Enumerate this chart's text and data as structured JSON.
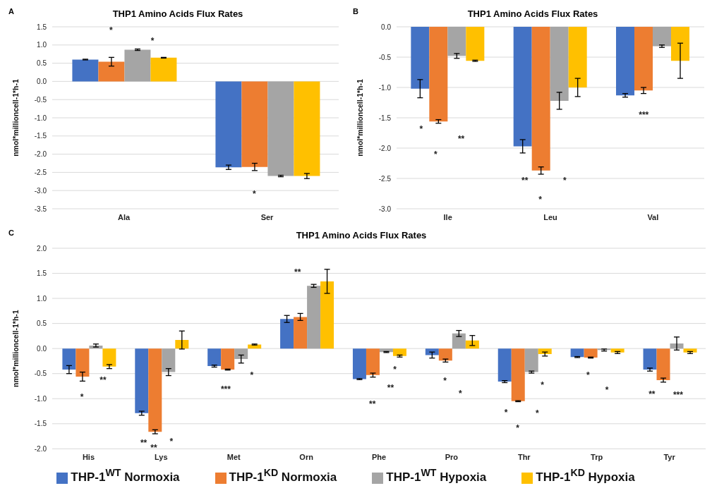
{
  "chart_data": [
    {
      "type": "bar",
      "title": "THP1 Amino Acids Flux Rates",
      "ylabel": "nmol*millioncell-1*h-1",
      "categories": [
        "Ala",
        "Ser"
      ],
      "series": [
        {
          "color": "#4472c4",
          "values": [
            0.6,
            -2.36
          ],
          "errors": [
            0.01,
            0.06
          ]
        },
        {
          "color": "#ed7d31",
          "values": [
            0.54,
            -2.35
          ],
          "errors": [
            0.12,
            0.1
          ]
        },
        {
          "color": "#a5a5a5",
          "values": [
            0.87,
            -2.6
          ],
          "errors": [
            0.02,
            0.02
          ]
        },
        {
          "color": "#ffc000",
          "values": [
            0.65,
            -2.6
          ],
          "errors": [
            0.01,
            0.07
          ]
        }
      ],
      "ylim": [
        -3.5,
        1.5
      ],
      "yticks": [
        {
          "value": -3.5,
          "label": "-3.5"
        },
        {
          "value": -3,
          "label": "-3.0"
        },
        {
          "value": -2.5,
          "label": "-2.5"
        },
        {
          "value": -2,
          "label": "-2.0"
        },
        {
          "value": -1.5,
          "label": "-1.5"
        },
        {
          "value": -1,
          "label": "-1.0"
        },
        {
          "value": -0.5,
          "label": "-0.5"
        },
        {
          "value": 0,
          "label": "0.0"
        },
        {
          "value": 0.5,
          "label": "0.5"
        },
        {
          "value": 1,
          "label": "1.0"
        },
        {
          "value": 1.5,
          "label": "1.5"
        }
      ],
      "grid": "y",
      "annotations": [
        "A",
        "*",
        "*",
        "*"
      ]
    },
    {
      "type": "bar",
      "title": "THP1 Amino Acids Flux Rates",
      "ylabel": "nmol*millioncell-1*h-1",
      "categories": [
        "Ile",
        "Leu",
        "Val"
      ],
      "series": [
        {
          "color": "#4472c4",
          "values": [
            -1.02,
            -1.97,
            -1.13
          ],
          "errors": [
            0.15,
            0.11,
            0.03
          ]
        },
        {
          "color": "#ed7d31",
          "values": [
            -1.56,
            -2.37,
            -1.05
          ],
          "errors": [
            0.03,
            0.06,
            0.05
          ]
        },
        {
          "color": "#a5a5a5",
          "values": [
            -0.48,
            -1.22,
            -0.32
          ],
          "errors": [
            0.04,
            0.14,
            0.02
          ]
        },
        {
          "color": "#ffc000",
          "values": [
            -0.56,
            -1.0,
            -0.56
          ],
          "errors": [
            0.01,
            0.15,
            0.29
          ]
        }
      ],
      "ylim": [
        -3,
        0
      ],
      "yticks": [
        {
          "value": -3,
          "label": "-3.0"
        },
        {
          "value": -2.5,
          "label": "-2.5"
        },
        {
          "value": -2,
          "label": "-2.0"
        },
        {
          "value": -1.5,
          "label": "-1.5"
        },
        {
          "value": -1,
          "label": "-1.0"
        },
        {
          "value": -0.5,
          "label": "-0.5"
        },
        {
          "value": 0,
          "label": "0.0"
        }
      ],
      "grid": "y",
      "annotations": [
        "B",
        "*",
        "**",
        "*",
        "**",
        "*",
        "*",
        "***"
      ]
    },
    {
      "type": "bar",
      "title": "THP1 Amino Acids Flux Rates",
      "ylabel": "nmol*millioncell-1*h-1",
      "categories": [
        "His",
        "Lys",
        "Met",
        "Orn",
        "Phe",
        "Pro",
        "Thr",
        "Trp",
        "Tyr"
      ],
      "series": [
        {
          "name": "THP-1$^{WT}$ Normoxia",
          "color": "#4472c4",
          "values": [
            -0.42,
            -1.29,
            -0.35,
            0.59,
            -0.61,
            -0.13,
            -0.66,
            -0.17,
            -0.42
          ],
          "errors": [
            0.08,
            0.04,
            0.02,
            0.07,
            0.01,
            0.06,
            0.02,
            0.01,
            0.03
          ]
        },
        {
          "name": "THP-1$^{KD}$ Normoxia",
          "color": "#ed7d31",
          "values": [
            -0.56,
            -1.66,
            -0.42,
            0.63,
            -0.53,
            -0.24,
            -1.05,
            -0.18,
            -0.63
          ],
          "errors": [
            0.09,
            0.04,
            0.01,
            0.07,
            0.04,
            0.03,
            0.01,
            0.01,
            0.04
          ]
        },
        {
          "name": "THP-1$^{WT}$ Hypoxia",
          "color": "#a5a5a5",
          "values": [
            0.06,
            -0.47,
            -0.21,
            1.25,
            -0.07,
            0.3,
            -0.47,
            -0.03,
            0.1
          ],
          "errors": [
            0.03,
            0.07,
            0.08,
            0.03,
            0.01,
            0.06,
            0.02,
            0.02,
            0.13
          ]
        },
        {
          "name": "THP-1$^{KD}$ Hypoxia",
          "color": "#ffc000",
          "values": [
            -0.36,
            0.17,
            0.08,
            1.34,
            -0.15,
            0.16,
            -0.11,
            -0.08,
            -0.08
          ],
          "errors": [
            0.04,
            0.18,
            0.01,
            0.24,
            0.02,
            0.1,
            0.04,
            0.02,
            0.02
          ]
        }
      ],
      "ylim": [
        -2,
        2
      ],
      "yticks": [
        {
          "value": -2,
          "label": "-2.0"
        },
        {
          "value": -1.5,
          "label": "-1.5"
        },
        {
          "value": -1,
          "label": "-1.0"
        },
        {
          "value": -0.5,
          "label": "-0.5"
        },
        {
          "value": 0,
          "label": "0.0"
        },
        {
          "value": 0.5,
          "label": "0.5"
        },
        {
          "value": 1,
          "label": "1.0"
        },
        {
          "value": 1.5,
          "label": "1.5"
        },
        {
          "value": 2,
          "label": "2.0"
        }
      ],
      "grid": "y",
      "legend": "bottom",
      "annotations": [
        "C",
        "*",
        "**",
        "**",
        "**",
        "*",
        "***",
        "*",
        "**",
        "**",
        "**",
        "*",
        "*",
        "*",
        "*",
        "*",
        "*",
        "*",
        "*",
        "*",
        "**",
        "***"
      ]
    }
  ]
}
